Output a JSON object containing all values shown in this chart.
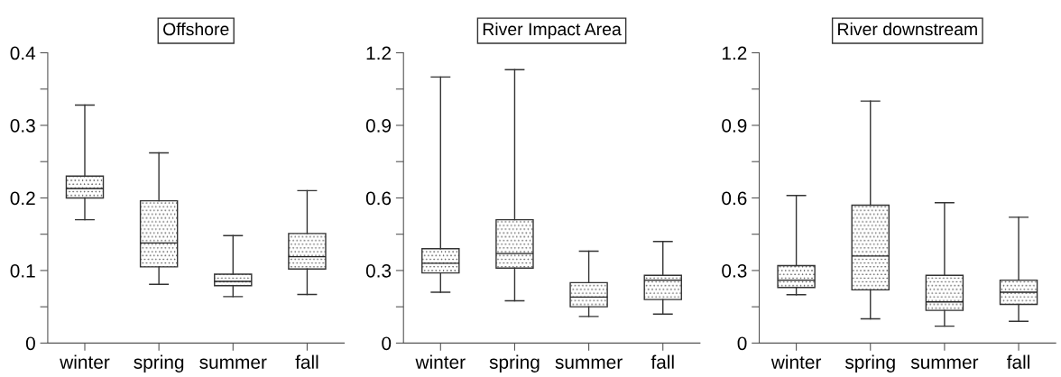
{
  "chart_data": [
    {
      "type": "box",
      "title": "Offshore",
      "categories": [
        "winter",
        "spring",
        "summer",
        "fall"
      ],
      "color": "#333333",
      "boxes": [
        {
          "low": 0.17,
          "q1": 0.2,
          "median": 0.213,
          "q3": 0.23,
          "high": 0.328
        },
        {
          "low": 0.081,
          "q1": 0.105,
          "median": 0.138,
          "q3": 0.196,
          "high": 0.262
        },
        {
          "low": 0.064,
          "q1": 0.079,
          "median": 0.085,
          "q3": 0.095,
          "high": 0.148
        },
        {
          "low": 0.067,
          "q1": 0.102,
          "median": 0.119,
          "q3": 0.151,
          "high": 0.21
        }
      ],
      "ylim": [
        0,
        0.4
      ],
      "yticks": [
        0,
        {
          "value": 0.05,
          "label": null
        },
        0.1,
        {
          "value": 0.15,
          "label": null
        },
        0.2,
        {
          "value": 0.25,
          "label": null
        },
        0.3,
        {
          "value": 0.35,
          "label": null
        },
        0.4
      ],
      "grid": false
    },
    {
      "type": "box",
      "title": "River Impact Area",
      "categories": [
        "winter",
        "spring",
        "summer",
        "fall"
      ],
      "color": "#333333",
      "boxes": [
        {
          "low": 0.21,
          "q1": 0.29,
          "median": 0.33,
          "q3": 0.39,
          "high": 1.1
        },
        {
          "low": 0.175,
          "q1": 0.31,
          "median": 0.37,
          "q3": 0.51,
          "high": 1.13
        },
        {
          "low": 0.11,
          "q1": 0.15,
          "median": 0.19,
          "q3": 0.25,
          "high": 0.38
        },
        {
          "low": 0.12,
          "q1": 0.18,
          "median": 0.26,
          "q3": 0.28,
          "high": 0.42
        }
      ],
      "ylim": [
        0,
        1.2
      ],
      "yticks": [
        0,
        {
          "value": 0.15,
          "label": null
        },
        0.3,
        {
          "value": 0.45,
          "label": null
        },
        0.6,
        {
          "value": 0.75,
          "label": null
        },
        0.9,
        {
          "value": 1.05,
          "label": null
        },
        1.2
      ],
      "grid": false
    },
    {
      "type": "box",
      "title": "River downstream",
      "categories": [
        "winter",
        "spring",
        "summer",
        "fall"
      ],
      "color": "#333333",
      "boxes": [
        {
          "low": 0.2,
          "q1": 0.23,
          "median": 0.26,
          "q3": 0.32,
          "high": 0.61
        },
        {
          "low": 0.1,
          "q1": 0.22,
          "median": 0.36,
          "q3": 0.57,
          "high": 1.0
        },
        {
          "low": 0.07,
          "q1": 0.135,
          "median": 0.17,
          "q3": 0.28,
          "high": 0.58
        },
        {
          "low": 0.09,
          "q1": 0.16,
          "median": 0.21,
          "q3": 0.26,
          "high": 0.52
        }
      ],
      "ylim": [
        0,
        1.2
      ],
      "yticks": [
        0,
        {
          "value": 0.15,
          "label": null
        },
        0.3,
        {
          "value": 0.45,
          "label": null
        },
        0.6,
        {
          "value": 0.75,
          "label": null
        },
        0.9,
        {
          "value": 1.05,
          "label": null
        },
        1.2
      ],
      "grid": false
    }
  ]
}
